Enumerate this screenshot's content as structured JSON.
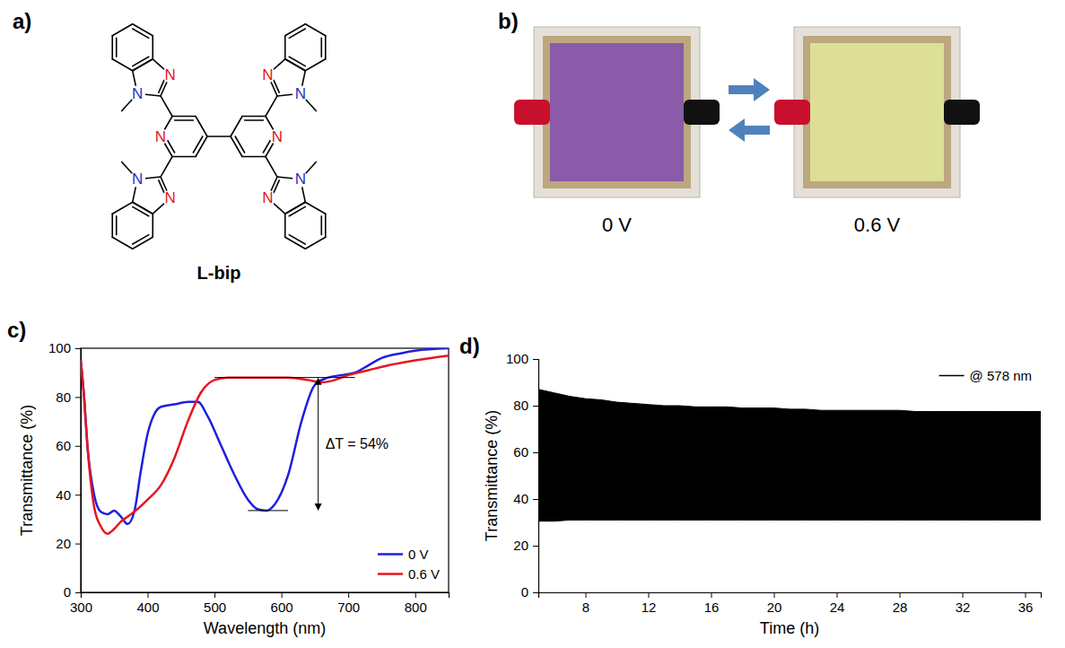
{
  "panel_letters": [
    "a)",
    "b)",
    "c)",
    "d)"
  ],
  "structure": {
    "name": "L-bip",
    "atom_labels": [
      "N",
      "N",
      "N",
      "N",
      "N",
      "N",
      "N",
      "N",
      "N",
      "N"
    ]
  },
  "photos": {
    "captions": [
      "0 V",
      "0.6 V"
    ]
  },
  "chart_data": [
    {
      "type": "line",
      "x_label": "Wavelength (nm)",
      "y_label": "Transmittance (%)",
      "xlim": [
        300,
        850
      ],
      "xticks": [
        300,
        400,
        500,
        600,
        700,
        800
      ],
      "ylim": [
        0,
        100
      ],
      "yticks": [
        0,
        20,
        40,
        60,
        80,
        100
      ],
      "legend": "lower right",
      "series": [
        {
          "name": "0 V",
          "color": "#1f1fe0",
          "x": [
            300,
            305,
            310,
            320,
            330,
            340,
            350,
            360,
            370,
            380,
            390,
            400,
            410,
            420,
            440,
            460,
            475,
            490,
            510,
            530,
            550,
            565,
            578,
            590,
            610,
            630,
            650,
            670,
            690,
            710,
            730,
            750,
            780,
            800,
            850
          ],
          "values": [
            95,
            80,
            60,
            40,
            33,
            32,
            33.5,
            31,
            28,
            33,
            50,
            65,
            73,
            76,
            77,
            78,
            78,
            72,
            60,
            48,
            38,
            34,
            33.5,
            36,
            48,
            70,
            85,
            88,
            89,
            90,
            93,
            96,
            98,
            99,
            100
          ]
        },
        {
          "name": "0.6 V",
          "color": "#e8141c",
          "x": [
            300,
            305,
            310,
            320,
            330,
            340,
            350,
            360,
            370,
            380,
            400,
            420,
            440,
            460,
            480,
            500,
            520,
            550,
            580,
            610,
            640,
            660,
            680,
            700,
            730,
            760,
            800,
            850
          ],
          "values": [
            95,
            80,
            60,
            35,
            27,
            24,
            26,
            29,
            31,
            33,
            38,
            44,
            55,
            70,
            82,
            87,
            88,
            88,
            88,
            88,
            87,
            86,
            87,
            89,
            91,
            93,
            95,
            97
          ]
        }
      ],
      "annotations": [
        {
          "text": "ΔT = 54%",
          "x": 655,
          "y_values": [
            88,
            33.5
          ],
          "x_ranges": [
            [
              500,
              710
            ],
            [
              550,
              610
            ]
          ]
        }
      ]
    },
    {
      "type": "area",
      "x_label": "Time (h)",
      "y_label": "Transmittance (%)",
      "xlim": [
        5,
        37
      ],
      "xticks": [
        8,
        12,
        16,
        20,
        24,
        28,
        32,
        36
      ],
      "ylim": [
        0,
        100
      ],
      "yticks": [
        0,
        20,
        40,
        60,
        80,
        100
      ],
      "legend": "upper right",
      "x": [
        5,
        6,
        7,
        8,
        9,
        10,
        11,
        12,
        13,
        14,
        15,
        16,
        17,
        18,
        19,
        20,
        21,
        22,
        23,
        24,
        25,
        26,
        27,
        28,
        29,
        30,
        31,
        32,
        33,
        34,
        35,
        36,
        37
      ],
      "series": [
        {
          "name": "@ 578 nm",
          "color": "#000000",
          "values": [
            87,
            85.5,
            84,
            83,
            82.5,
            81.5,
            81,
            80.5,
            80,
            80,
            79.5,
            79.5,
            79.5,
            79,
            79,
            79,
            78.5,
            78.5,
            78,
            78,
            78,
            78,
            78,
            78,
            77.5,
            77.5,
            77.5,
            77.5,
            77.5,
            77.5,
            77.5,
            77.5,
            77.5
          ],
          "lower": [
            30.5,
            30.5,
            31,
            31,
            31,
            31,
            31,
            31,
            31,
            31,
            31,
            31,
            31,
            31,
            31,
            31,
            31,
            31,
            31,
            31,
            31,
            31,
            31,
            31,
            31,
            31,
            31,
            31,
            31,
            31,
            31,
            31,
            31
          ]
        }
      ]
    }
  ]
}
